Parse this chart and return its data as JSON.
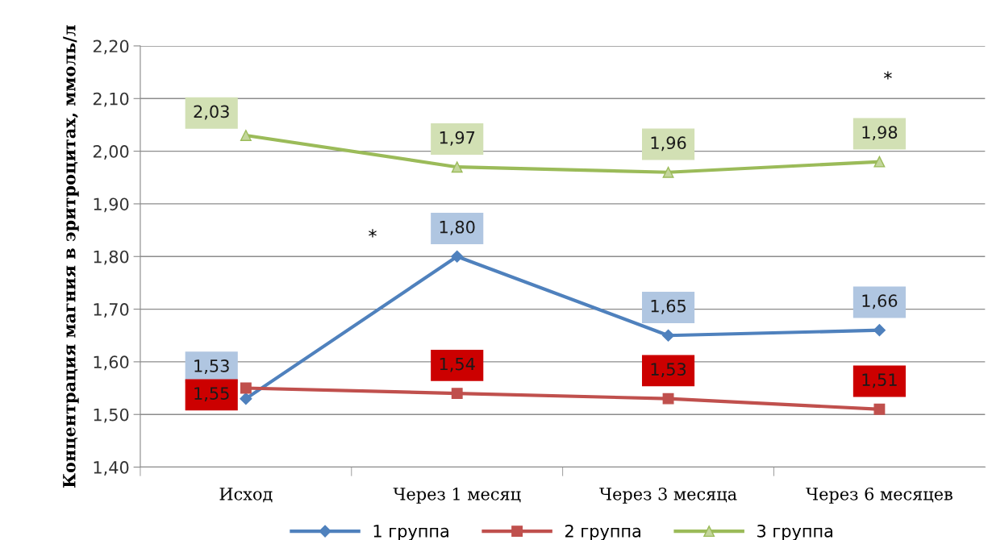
{
  "chart_data": {
    "type": "line",
    "ylabel": "Концентрация магния в эритроцитах, ммоль/л",
    "categories": [
      "Исход",
      "Через 1 месяц",
      "Через 3 месяца",
      "Через 6 месяцев"
    ],
    "series": [
      {
        "name": "1 группа",
        "color": "#4f81bd",
        "marker": "diamond",
        "values": [
          1.53,
          1.8,
          1.65,
          1.66
        ],
        "value_labels": [
          "1,53",
          "1,80",
          "1,65",
          "1,66"
        ]
      },
      {
        "name": "2 группа",
        "color": "#c0504d",
        "marker": "square",
        "values": [
          1.55,
          1.54,
          1.53,
          1.51
        ],
        "value_labels": [
          "1,55",
          "1,54",
          "1,53",
          "1,51"
        ]
      },
      {
        "name": "3 группа",
        "color": "#9bbb59",
        "marker": "triangle",
        "values": [
          2.03,
          1.97,
          1.96,
          1.98
        ],
        "value_labels": [
          "2,03",
          "1,97",
          "1,96",
          "1,98"
        ]
      }
    ],
    "ylim": [
      1.4,
      2.2
    ],
    "yticks": [
      {
        "value": 1.4,
        "label": "1,40"
      },
      {
        "value": 1.5,
        "label": "1,50"
      },
      {
        "value": 1.6,
        "label": "1,60"
      },
      {
        "value": 1.7,
        "label": "1,70"
      },
      {
        "value": 1.8,
        "label": "1,80"
      },
      {
        "value": 1.9,
        "label": "1,90"
      },
      {
        "value": 2.0,
        "label": "2,00"
      },
      {
        "value": 2.1,
        "label": "2,10"
      },
      {
        "value": 2.2,
        "label": "2,20"
      }
    ],
    "grid": "y",
    "legend": "bottom",
    "annotations": [
      "*",
      "*"
    ]
  }
}
